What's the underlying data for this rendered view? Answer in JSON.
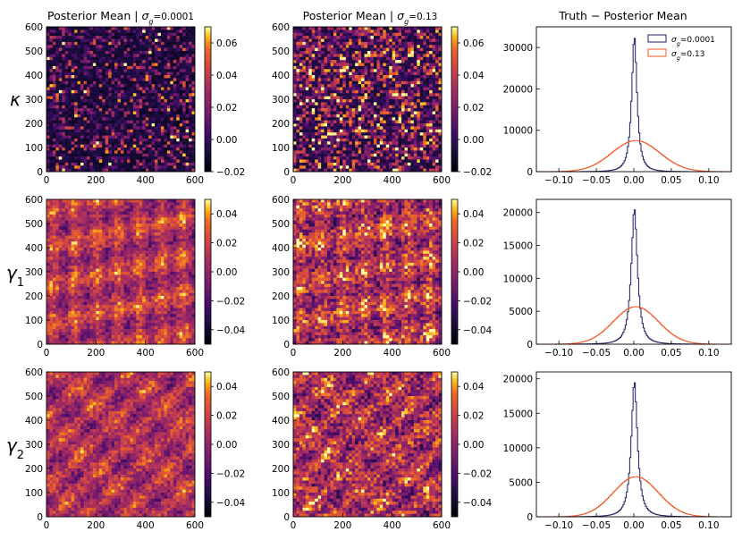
{
  "chart_data": [
    {
      "type": "heatmap",
      "row": "kappa",
      "col": 0,
      "title_main": "Posterior Mean |",
      "title_sigma": "σ",
      "title_sub": "g",
      "title_eq": "=0.0001",
      "xticks": [
        "0",
        "200",
        "400",
        "600"
      ],
      "yticks": [
        "0",
        "100",
        "200",
        "300",
        "400",
        "500",
        "600"
      ],
      "xlim": [
        0,
        600
      ],
      "ylim": [
        0,
        600
      ],
      "colorbar": {
        "range": [
          -0.02,
          0.07
        ],
        "ticks": [
          "−0.02",
          "0.00",
          "0.02",
          "0.04",
          "0.06"
        ],
        "tick_values": [
          -0.02,
          0,
          0.02,
          0.04,
          0.06
        ],
        "cmap": "inferno"
      }
    },
    {
      "type": "heatmap",
      "row": "kappa",
      "col": 1,
      "title_main": "Posterior Mean |",
      "title_sigma": "σ",
      "title_sub": "g",
      "title_eq": "=0.13",
      "xticks": [
        "0",
        "200",
        "400",
        "600"
      ],
      "yticks": [
        "0",
        "100",
        "200",
        "300",
        "400",
        "500",
        "600"
      ],
      "xlim": [
        0,
        600
      ],
      "ylim": [
        0,
        600
      ],
      "colorbar": {
        "range": [
          -0.02,
          0.07
        ],
        "ticks": [
          "−0.02",
          "0.00",
          "0.02",
          "0.04",
          "0.06"
        ],
        "tick_values": [
          -0.02,
          0,
          0.02,
          0.04,
          0.06
        ],
        "cmap": "inferno"
      }
    },
    {
      "type": "heatmap",
      "row": "gamma1",
      "col": 0,
      "xticks": [
        "0",
        "200",
        "400",
        "600"
      ],
      "yticks": [
        "0",
        "100",
        "200",
        "300",
        "400",
        "500",
        "600"
      ],
      "xlim": [
        0,
        600
      ],
      "ylim": [
        0,
        600
      ],
      "colorbar": {
        "range": [
          -0.05,
          0.05
        ],
        "ticks": [
          "−0.04",
          "−0.02",
          "0.00",
          "0.02",
          "0.04"
        ],
        "tick_values": [
          -0.04,
          -0.02,
          0,
          0.02,
          0.04
        ],
        "cmap": "inferno"
      }
    },
    {
      "type": "heatmap",
      "row": "gamma1",
      "col": 1,
      "xticks": [
        "0",
        "200",
        "400",
        "600"
      ],
      "yticks": [
        "0",
        "100",
        "200",
        "300",
        "400",
        "500",
        "600"
      ],
      "xlim": [
        0,
        600
      ],
      "ylim": [
        0,
        600
      ],
      "colorbar": {
        "range": [
          -0.05,
          0.05
        ],
        "ticks": [
          "−0.04",
          "−0.02",
          "0.00",
          "0.02",
          "0.04"
        ],
        "tick_values": [
          -0.04,
          -0.02,
          0,
          0.02,
          0.04
        ],
        "cmap": "inferno"
      }
    },
    {
      "type": "heatmap",
      "row": "gamma2",
      "col": 0,
      "xticks": [
        "0",
        "200",
        "400",
        "600"
      ],
      "yticks": [
        "0",
        "100",
        "200",
        "300",
        "400",
        "500",
        "600"
      ],
      "xlim": [
        0,
        600
      ],
      "ylim": [
        0,
        600
      ],
      "colorbar": {
        "range": [
          -0.05,
          0.05
        ],
        "ticks": [
          "−0.04",
          "−0.02",
          "0.00",
          "0.02",
          "0.04"
        ],
        "tick_values": [
          -0.04,
          -0.02,
          0,
          0.02,
          0.04
        ],
        "cmap": "inferno"
      }
    },
    {
      "type": "heatmap",
      "row": "gamma2",
      "col": 1,
      "xticks": [
        "0",
        "200",
        "400",
        "600"
      ],
      "yticks": [
        "0",
        "100",
        "200",
        "300",
        "400",
        "500",
        "600"
      ],
      "xlim": [
        0,
        600
      ],
      "ylim": [
        0,
        600
      ],
      "colorbar": {
        "range": [
          -0.05,
          0.05
        ],
        "ticks": [
          "−0.04",
          "−0.02",
          "0.00",
          "0.02",
          "0.04"
        ],
        "tick_values": [
          -0.04,
          -0.02,
          0,
          0.02,
          0.04
        ],
        "cmap": "inferno"
      }
    },
    {
      "type": "line",
      "row": "kappa",
      "col": 2,
      "title": "Truth − Posterior Mean",
      "xlim": [
        -0.13,
        0.13
      ],
      "xticks": [
        "−0.10",
        "−0.05",
        "0.00",
        "0.05",
        "0.10"
      ],
      "xtick_values": [
        -0.1,
        -0.05,
        0,
        0.05,
        0.1
      ],
      "ylim": [
        0,
        35000
      ],
      "yticks": [
        "0",
        "10000",
        "20000",
        "30000"
      ],
      "ytick_values": [
        0,
        10000,
        20000,
        30000
      ],
      "legend": [
        {
          "sigma": "σ",
          "sub": "g",
          "eq": "=0.0001"
        },
        {
          "sigma": "σ",
          "sub": "g",
          "eq": "=0.13"
        }
      ],
      "series": [
        {
          "name": "σg=0.0001",
          "color": "#1a1f5c",
          "peak": 33000,
          "center": 0,
          "width": 0.006
        },
        {
          "name": "σg=0.13",
          "color": "#f05a28",
          "peak": 7500,
          "center": 0.002,
          "width": 0.032
        }
      ]
    },
    {
      "type": "line",
      "row": "gamma1",
      "col": 2,
      "xlim": [
        -0.13,
        0.13
      ],
      "xticks": [
        "−0.10",
        "−0.05",
        "0.00",
        "0.05",
        "0.10"
      ],
      "xtick_values": [
        -0.1,
        -0.05,
        0,
        0.05,
        0.1
      ],
      "ylim": [
        0,
        22000
      ],
      "yticks": [
        "0",
        "5000",
        "10000",
        "15000",
        "20000"
      ],
      "ytick_values": [
        0,
        5000,
        10000,
        15000,
        20000
      ],
      "series": [
        {
          "name": "σg=0.0001",
          "color": "#1a1f5c",
          "peak": 20800,
          "center": 0,
          "width": 0.007
        },
        {
          "name": "σg=0.13",
          "color": "#f05a28",
          "peak": 5700,
          "center": 0.002,
          "width": 0.03
        }
      ]
    },
    {
      "type": "line",
      "row": "gamma2",
      "col": 2,
      "xlim": [
        -0.13,
        0.13
      ],
      "xticks": [
        "−0.10",
        "−0.05",
        "0.00",
        "0.05",
        "0.10"
      ],
      "xtick_values": [
        -0.1,
        -0.05,
        0,
        0.05,
        0.1
      ],
      "ylim": [
        0,
        21000
      ],
      "yticks": [
        "0",
        "5000",
        "10000",
        "15000",
        "20000"
      ],
      "ytick_values": [
        0,
        5000,
        10000,
        15000,
        20000
      ],
      "series": [
        {
          "name": "σg=0.0001",
          "color": "#1a1f5c",
          "peak": 19800,
          "center": 0,
          "width": 0.007
        },
        {
          "name": "σg=0.13",
          "color": "#f05a28",
          "peak": 5800,
          "center": 0.002,
          "width": 0.03
        }
      ]
    }
  ],
  "row_labels": [
    {
      "row": "kappa",
      "base": "κ",
      "sub": ""
    },
    {
      "row": "gamma1",
      "base": "γ",
      "sub": "1"
    },
    {
      "row": "gamma2",
      "base": "γ",
      "sub": "2"
    }
  ]
}
